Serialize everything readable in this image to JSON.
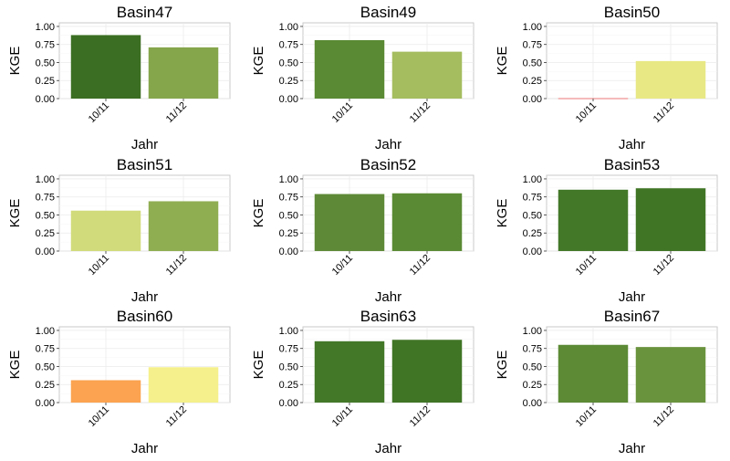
{
  "chart_data": [
    {
      "type": "bar",
      "title": "Basin47",
      "xlabel": "Jahr",
      "ylabel": "KGE",
      "categories": [
        "10/11",
        "11/12"
      ],
      "values": [
        0.88,
        0.71
      ],
      "colors": [
        "#3b6e22",
        "#86a64c"
      ],
      "ylim": [
        0,
        1.05
      ],
      "yticks": [
        "0.00",
        "0.25",
        "0.50",
        "0.75",
        "1.00"
      ]
    },
    {
      "type": "bar",
      "title": "Basin49",
      "xlabel": "Jahr",
      "ylabel": "KGE",
      "categories": [
        "10/11",
        "11/12"
      ],
      "values": [
        0.81,
        0.65
      ],
      "colors": [
        "#5a8a33",
        "#a5bd5f"
      ],
      "ylim": [
        0,
        1.05
      ],
      "yticks": [
        "0.00",
        "0.25",
        "0.50",
        "0.75",
        "1.00"
      ]
    },
    {
      "type": "bar",
      "title": "Basin50",
      "xlabel": "Jahr",
      "ylabel": "KGE",
      "categories": [
        "10/11",
        "11/12"
      ],
      "values": [
        0.005,
        0.52
      ],
      "colors": [
        "#f25c5c",
        "#e8e885"
      ],
      "ylim": [
        0,
        1.05
      ],
      "yticks": [
        "0.00",
        "0.25",
        "0.50",
        "0.75",
        "1.00"
      ]
    },
    {
      "type": "bar",
      "title": "Basin51",
      "xlabel": "Jahr",
      "ylabel": "KGE",
      "categories": [
        "10/11",
        "11/12"
      ],
      "values": [
        0.56,
        0.69
      ],
      "colors": [
        "#d1db7b",
        "#8fae52"
      ],
      "ylim": [
        0,
        1.05
      ],
      "yticks": [
        "0.00",
        "0.25",
        "0.50",
        "0.75",
        "1.00"
      ]
    },
    {
      "type": "bar",
      "title": "Basin52",
      "xlabel": "Jahr",
      "ylabel": "KGE",
      "categories": [
        "10/11",
        "11/12"
      ],
      "values": [
        0.79,
        0.8
      ],
      "colors": [
        "#5e8a37",
        "#5a8a33"
      ],
      "ylim": [
        0,
        1.05
      ],
      "yticks": [
        "0.00",
        "0.25",
        "0.50",
        "0.75",
        "1.00"
      ]
    },
    {
      "type": "bar",
      "title": "Basin53",
      "xlabel": "Jahr",
      "ylabel": "KGE",
      "categories": [
        "10/11",
        "11/12"
      ],
      "values": [
        0.85,
        0.87
      ],
      "colors": [
        "#437829",
        "#407525"
      ],
      "ylim": [
        0,
        1.05
      ],
      "yticks": [
        "0.00",
        "0.25",
        "0.50",
        "0.75",
        "1.00"
      ]
    },
    {
      "type": "bar",
      "title": "Basin60",
      "xlabel": "Jahr",
      "ylabel": "KGE",
      "categories": [
        "10/11",
        "11/12"
      ],
      "values": [
        0.31,
        0.49
      ],
      "colors": [
        "#fba350",
        "#f5f08b"
      ],
      "ylim": [
        0,
        1.05
      ],
      "yticks": [
        "0.00",
        "0.25",
        "0.50",
        "0.75",
        "1.00"
      ]
    },
    {
      "type": "bar",
      "title": "Basin63",
      "xlabel": "Jahr",
      "ylabel": "KGE",
      "categories": [
        "10/11",
        "11/12"
      ],
      "values": [
        0.85,
        0.87
      ],
      "colors": [
        "#437829",
        "#407525"
      ],
      "ylim": [
        0,
        1.05
      ],
      "yticks": [
        "0.00",
        "0.25",
        "0.50",
        "0.75",
        "1.00"
      ]
    },
    {
      "type": "bar",
      "title": "Basin67",
      "xlabel": "Jahr",
      "ylabel": "KGE",
      "categories": [
        "10/11",
        "11/12"
      ],
      "values": [
        0.8,
        0.77
      ],
      "colors": [
        "#5c8a35",
        "#6a933d"
      ],
      "ylim": [
        0,
        1.05
      ],
      "yticks": [
        "0.00",
        "0.25",
        "0.50",
        "0.75",
        "1.00"
      ]
    }
  ]
}
